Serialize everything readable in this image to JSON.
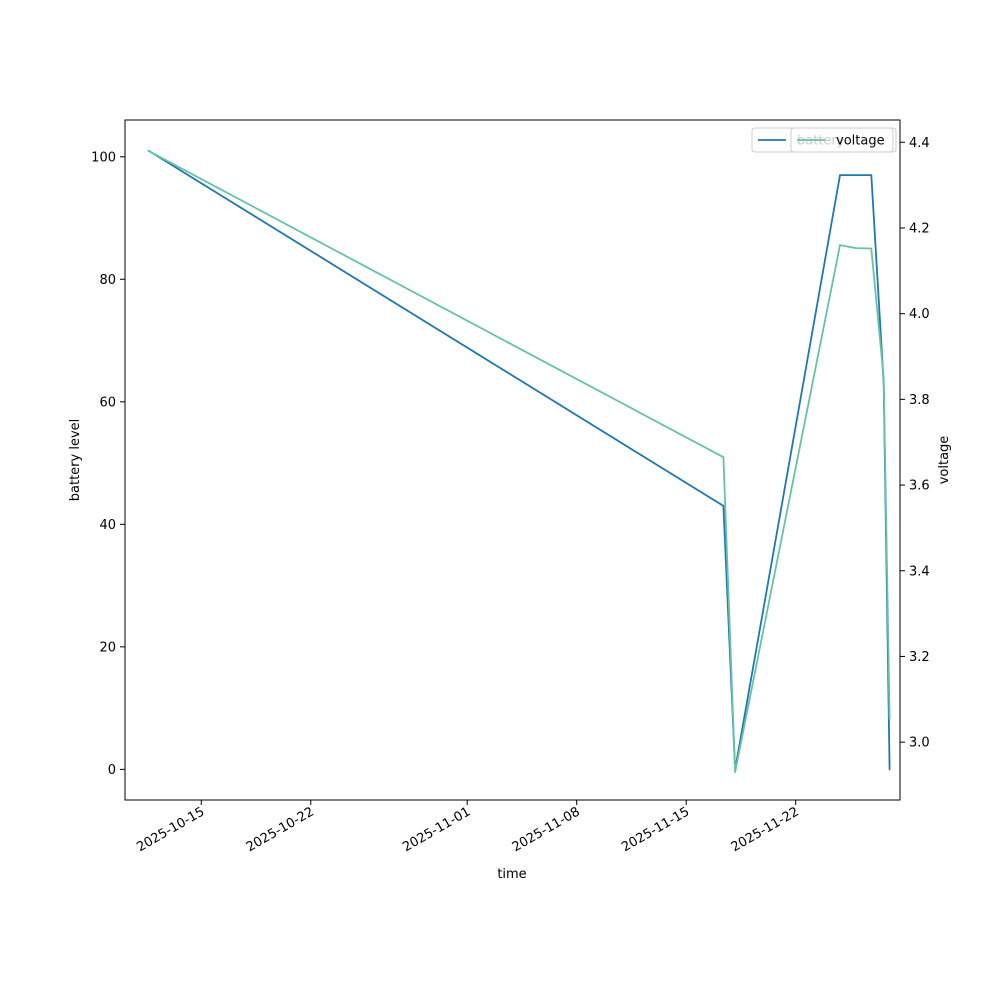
{
  "chart_data": {
    "type": "line",
    "xlabel": "time",
    "ylabel": "battery level",
    "y2label": "voltage",
    "xlim": [
      "2025-10-10T03:00",
      "2025-11-28T16:00"
    ],
    "ylim": [
      -5,
      106
    ],
    "y2lim": [
      2.865,
      4.452
    ],
    "x_ticks": [
      "2025-10-15",
      "2025-10-22",
      "2025-11-01",
      "2025-11-08",
      "2025-11-15",
      "2025-11-22"
    ],
    "y_ticks": [
      0,
      20,
      40,
      60,
      80,
      100
    ],
    "y2_ticks": [
      3.0,
      3.2,
      3.4,
      3.6,
      3.8,
      4.0,
      4.2,
      4.4
    ],
    "grid": false,
    "series": [
      {
        "name": "battery",
        "axis": "left",
        "color": "#1f77b4",
        "x": [
          "2025-10-11T15:00",
          "2025-11-17T09:00",
          "2025-11-18T03:00",
          "2025-11-24T20:00",
          "2025-11-26T20:00",
          "2025-11-27T15:00",
          "2025-11-28T00:00"
        ],
        "values": [
          101,
          43,
          0,
          97,
          97,
          63,
          0
        ]
      },
      {
        "name": "voltage",
        "axis": "right",
        "color": "#66c2a5",
        "x": [
          "2025-10-11T15:00",
          "2025-11-17T09:00",
          "2025-11-18T03:00",
          "2025-11-24T20:00",
          "2025-11-25T20:00",
          "2025-11-26T20:00",
          "2025-11-27T15:00",
          "2025-11-28T00:00"
        ],
        "values": [
          4.38,
          3.665,
          2.93,
          4.16,
          4.153,
          4.152,
          3.85,
          3.055
        ]
      }
    ],
    "legends": [
      {
        "placement": "top-right",
        "entries": [
          "battery"
        ]
      },
      {
        "placement": "top-right",
        "entries": [
          "voltage"
        ]
      }
    ]
  }
}
